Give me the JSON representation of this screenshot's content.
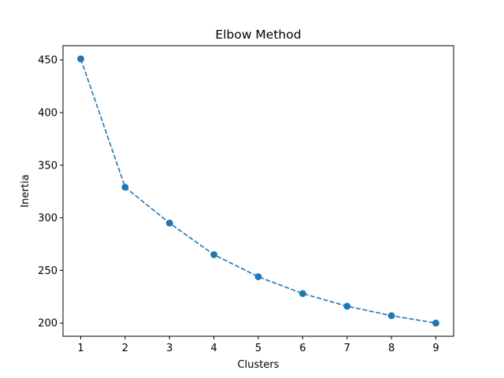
{
  "chart_data": {
    "type": "line",
    "title": "Elbow Method",
    "xlabel": "Clusters",
    "ylabel": "Inertia",
    "x": [
      1,
      2,
      3,
      4,
      5,
      6,
      7,
      8,
      9
    ],
    "series": [
      {
        "values": [
          451,
          329,
          295,
          265,
          244,
          228,
          216,
          207,
          200
        ],
        "color": "#1f77b4",
        "line_style": "dashed",
        "marker": "circle"
      }
    ],
    "xticks": [
      1,
      2,
      3,
      4,
      5,
      6,
      7,
      8,
      9
    ],
    "yticks": [
      200,
      250,
      300,
      350,
      400,
      450
    ],
    "xlim": [
      0.6,
      9.4
    ],
    "ylim": [
      187.45,
      463.55
    ],
    "grid": false,
    "legend": "none"
  }
}
